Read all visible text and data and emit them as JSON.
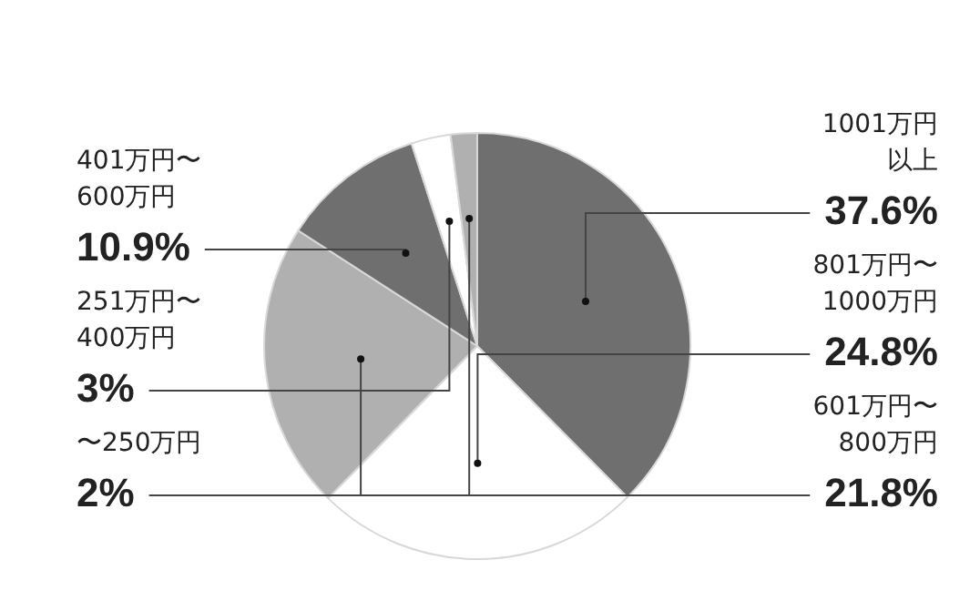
{
  "chart_data": {
    "type": "pie",
    "categories": [
      "1001万円以上",
      "801万円〜1000万円",
      "601万円〜800万円",
      "401万円〜600万円",
      "251万円〜400万円",
      "〜250万円"
    ],
    "values": [
      37.6,
      24.8,
      21.8,
      10.9,
      3,
      2
    ],
    "colors": [
      "#6f6f6f",
      "#ffffff",
      "#b0b0b0",
      "#6f6f6f",
      "#ffffff",
      "#b0b0b0"
    ],
    "value_labels": [
      "37.6%",
      "24.8%",
      "21.8%",
      "10.9%",
      "3%",
      "2%"
    ],
    "legend": false
  }
}
